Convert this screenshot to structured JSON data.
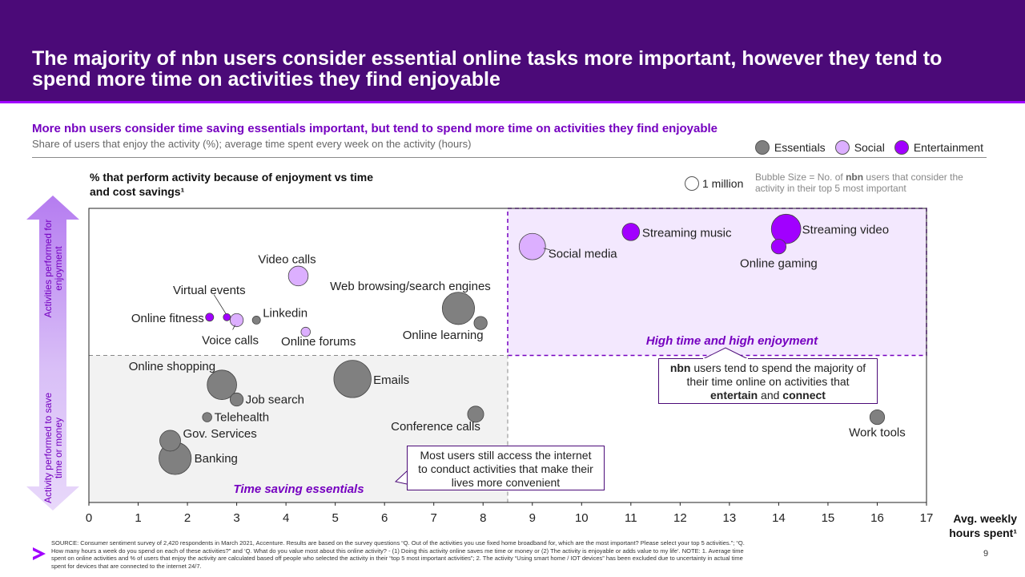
{
  "page": {
    "title": "The majority of nbn users consider essential online tasks more important, however they tend to spend more time on activities they find enjoyable",
    "subtitle": "More nbn users consider time saving essentials important, but tend to spend more time on activities they find enjoyable",
    "caption": "Share of users that enjoy the activity (%); average time spent every week on the activity (hours)",
    "page_number": "9",
    "source_note": "SOURCE: Consumer sentiment survey of 2,420 respondents in March 2021, Accenture. Results are based on the survey questions “Q. Out of the activities you use fixed home broadband for, which are the most important? Please select your top 5 activities.”; “Q. How many hours a week do you spend on each of these activities?” and ‘Q. What do you value most about this online activity? - (1) Doing this activity online saves me time or money or (2) The activity is enjoyable or adds value to my life’. NOTE: 1. Average time spent on online activities and % of users that enjoy the activity are calculated based off people who selected the activity in their “top 5 most important activities”; 2. The activity “Using smart home / IOT devices” has been excluded due to uncertainty in actual time spent for devices that are connected to the internet 24/7."
  },
  "legend": {
    "items": [
      {
        "label": "Essentials",
        "color": "#808080"
      },
      {
        "label": "Social",
        "color": "#dcafff"
      },
      {
        "label": "Entertainment",
        "color": "#a100ff"
      }
    ]
  },
  "size_key": {
    "label": "1 million",
    "note_prefix": "Bubble Size = No. of ",
    "note_bold": "nbn",
    "note_suffix": " users that consider the activity in their top 5 most important"
  },
  "side_labels": {
    "top": "Activities performed for enjoyment",
    "bottom": "Activity performed to save time or money"
  },
  "callouts": {
    "essentials_box": "Most users still access the internet to conduct activities that make their lives more convenient",
    "enjoy_box_bold1": "nbn",
    "enjoy_box_text1": " users tend to spend the majority of their time online on activities that ",
    "enjoy_box_bold2": "entertain",
    "enjoy_box_text2": " and ",
    "enjoy_box_bold3": "connect"
  },
  "chart_data": {
    "type": "scatter",
    "title": "% that perform activity because of enjoyment vs time and cost savings¹",
    "xlabel": "Avg. weekly hours spent¹",
    "ylabel": "% that perform activity because of enjoyment vs time and cost savings¹",
    "xlim": [
      0,
      17
    ],
    "x_ticks": [
      0,
      1,
      2,
      3,
      4,
      5,
      6,
      7,
      8,
      9,
      10,
      11,
      12,
      13,
      14,
      15,
      16,
      17
    ],
    "quadrant_divider_x": 8.5,
    "quadrant_divider_y": 50,
    "ylim": [
      0,
      100
    ],
    "regions": [
      {
        "label": "Time saving essentials"
      },
      {
        "label": "High time and high enjoyment"
      }
    ],
    "series": [
      {
        "name": "Essentials",
        "color": "#808080",
        "points": [
          {
            "label": "Online shopping",
            "x": 2.7,
            "y": 40,
            "size": 2.0
          },
          {
            "label": "Job search",
            "x": 3.0,
            "y": 35,
            "size": 0.4
          },
          {
            "label": "Telehealth",
            "x": 2.4,
            "y": 29,
            "size": 0.2
          },
          {
            "label": "Gov. Services",
            "x": 1.65,
            "y": 21,
            "size": 1.0
          },
          {
            "label": "Banking",
            "x": 1.75,
            "y": 15,
            "size": 2.4
          },
          {
            "label": "Emails",
            "x": 5.35,
            "y": 42,
            "size": 3.2
          },
          {
            "label": "Conference calls",
            "x": 7.85,
            "y": 30,
            "size": 0.6
          },
          {
            "label": "Web browsing/search engines",
            "x": 7.5,
            "y": 66,
            "size": 2.4
          },
          {
            "label": "Online learning",
            "x": 7.95,
            "y": 61,
            "size": 0.4
          },
          {
            "label": "Linkedin",
            "x": 3.4,
            "y": 62,
            "size": 0.15
          },
          {
            "label": "Work tools",
            "x": 16.0,
            "y": 29,
            "size": 0.5
          }
        ]
      },
      {
        "name": "Social",
        "color": "#dcafff",
        "points": [
          {
            "label": "Video calls",
            "x": 4.25,
            "y": 77,
            "size": 0.9
          },
          {
            "label": "Voice calls",
            "x": 3.0,
            "y": 62,
            "size": 0.4
          },
          {
            "label": "Online forums",
            "x": 4.4,
            "y": 58,
            "size": 0.2
          },
          {
            "label": "Social media",
            "x": 9.0,
            "y": 87,
            "size": 1.6
          }
        ]
      },
      {
        "name": "Entertainment",
        "color": "#a100ff",
        "points": [
          {
            "label": "Online fitness",
            "x": 2.45,
            "y": 63,
            "size": 0.15
          },
          {
            "label": "Virtual events",
            "x": 2.8,
            "y": 63,
            "size": 0.12
          },
          {
            "label": "Streaming music",
            "x": 11.0,
            "y": 92,
            "size": 0.7
          },
          {
            "label": "Streaming video",
            "x": 14.15,
            "y": 93,
            "size": 2.0
          },
          {
            "label": "Online gaming",
            "x": 14.0,
            "y": 87,
            "size": 0.5
          }
        ]
      }
    ]
  }
}
